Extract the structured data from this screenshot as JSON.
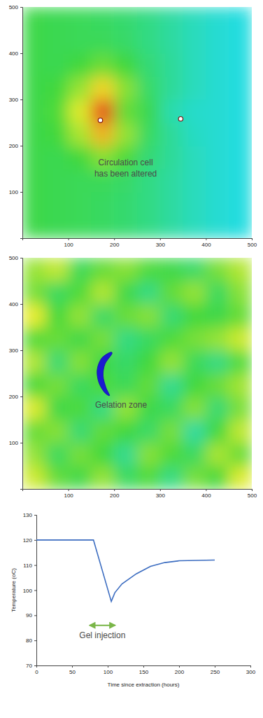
{
  "chart_data": [
    {
      "type": "heatmap",
      "x": [
        25,
        75,
        125,
        175,
        225,
        275,
        325,
        375,
        425,
        475
      ],
      "y": [
        25,
        75,
        125,
        175,
        225,
        275,
        325,
        375,
        425,
        475
      ],
      "z": [
        [
          0.48,
          0.47,
          0.46,
          0.45,
          0.43,
          0.4,
          0.36,
          0.32,
          0.29,
          0.27
        ],
        [
          0.48,
          0.47,
          0.46,
          0.45,
          0.43,
          0.4,
          0.36,
          0.32,
          0.29,
          0.27
        ],
        [
          0.48,
          0.47,
          0.46,
          0.46,
          0.44,
          0.4,
          0.36,
          0.32,
          0.29,
          0.27
        ],
        [
          0.48,
          0.47,
          0.5,
          0.6,
          0.52,
          0.42,
          0.37,
          0.32,
          0.29,
          0.27
        ],
        [
          0.48,
          0.5,
          0.65,
          0.82,
          0.62,
          0.45,
          0.37,
          0.31,
          0.29,
          0.27
        ],
        [
          0.48,
          0.52,
          0.72,
          0.95,
          0.55,
          0.47,
          0.34,
          0.3,
          0.29,
          0.27
        ],
        [
          0.48,
          0.5,
          0.62,
          0.78,
          0.6,
          0.44,
          0.37,
          0.32,
          0.29,
          0.27
        ],
        [
          0.48,
          0.47,
          0.5,
          0.56,
          0.5,
          0.42,
          0.37,
          0.32,
          0.29,
          0.27
        ],
        [
          0.48,
          0.47,
          0.46,
          0.46,
          0.44,
          0.4,
          0.36,
          0.32,
          0.29,
          0.27
        ],
        [
          0.48,
          0.47,
          0.46,
          0.45,
          0.43,
          0.4,
          0.36,
          0.32,
          0.29,
          0.27
        ]
      ],
      "zlim": [
        0,
        1
      ],
      "xlim": [
        0,
        500
      ],
      "ylim": [
        0,
        500
      ],
      "xticks": [
        100,
        200,
        300,
        400,
        500
      ],
      "yticks": [
        100,
        200,
        300,
        400,
        500
      ],
      "markers": {
        "x": [
          170,
          345
        ],
        "y": [
          255,
          258
        ]
      },
      "annotation": {
        "text": [
          "Circulation cell",
          "has been altered"
        ],
        "x": 225,
        "y": 150
      }
    },
    {
      "type": "heatmap",
      "x": [
        25,
        75,
        125,
        175,
        225,
        275,
        325,
        375,
        425,
        475
      ],
      "y": [
        25,
        75,
        125,
        175,
        225,
        275,
        325,
        375,
        425,
        475
      ],
      "z": [
        [
          0.7,
          0.55,
          0.48,
          0.62,
          0.45,
          0.52,
          0.4,
          0.58,
          0.5,
          0.72
        ],
        [
          0.62,
          0.45,
          0.58,
          0.5,
          0.38,
          0.6,
          0.52,
          0.45,
          0.65,
          0.55
        ],
        [
          0.55,
          0.6,
          0.42,
          0.55,
          0.5,
          0.44,
          0.58,
          0.36,
          0.5,
          0.68
        ],
        [
          0.72,
          0.48,
          0.52,
          0.4,
          0.62,
          0.48,
          0.45,
          0.6,
          0.42,
          0.58
        ],
        [
          0.5,
          0.58,
          0.45,
          0.52,
          0.46,
          0.55,
          0.38,
          0.5,
          0.56,
          0.64
        ],
        [
          0.66,
          0.42,
          0.6,
          0.48,
          0.44,
          0.5,
          0.62,
          0.46,
          0.4,
          0.52
        ],
        [
          0.52,
          0.56,
          0.48,
          0.58,
          0.4,
          0.45,
          0.52,
          0.58,
          0.62,
          0.7
        ],
        [
          0.74,
          0.5,
          0.62,
          0.44,
          0.56,
          0.6,
          0.42,
          0.5,
          0.48,
          0.55
        ],
        [
          0.58,
          0.45,
          0.52,
          0.66,
          0.48,
          0.4,
          0.55,
          0.62,
          0.45,
          0.6
        ],
        [
          0.62,
          0.68,
          0.46,
          0.55,
          0.6,
          0.52,
          0.48,
          0.44,
          0.58,
          0.66
        ]
      ],
      "zlim": [
        0,
        1
      ],
      "xlim": [
        0,
        500
      ],
      "ylim": [
        0,
        500
      ],
      "xticks": [
        100,
        200,
        300,
        400,
        500
      ],
      "yticks": [
        100,
        200,
        300,
        400,
        500
      ],
      "zone": {
        "x": [
          190,
          172,
          163,
          166,
          178,
          190,
          182,
          176,
          180,
          195
        ],
        "y": [
          295,
          282,
          258,
          232,
          210,
          202,
          220,
          245,
          270,
          292
        ]
      },
      "annotation": {
        "text": [
          "Gelation zone"
        ],
        "x": 215,
        "y": 180
      }
    },
    {
      "type": "line",
      "x": [
        0,
        80,
        105,
        110,
        120,
        140,
        160,
        180,
        200,
        250
      ],
      "values": [
        120,
        120,
        95.5,
        99,
        102.5,
        106.5,
        109.5,
        111,
        111.7,
        112
      ],
      "color": "#3b6cc0",
      "xlim": [
        0,
        300
      ],
      "ylim": [
        70,
        130
      ],
      "xticks": [
        0,
        50,
        100,
        150,
        200,
        250,
        300
      ],
      "yticks": [
        70,
        80,
        90,
        100,
        110,
        120,
        130
      ],
      "xlabel": "Time since extraction (hours)",
      "ylabel": "Temperature (oC)",
      "annotation": {
        "text": [
          "Gel injection"
        ],
        "x": [
          75,
          110
        ],
        "y": 86
      }
    }
  ]
}
